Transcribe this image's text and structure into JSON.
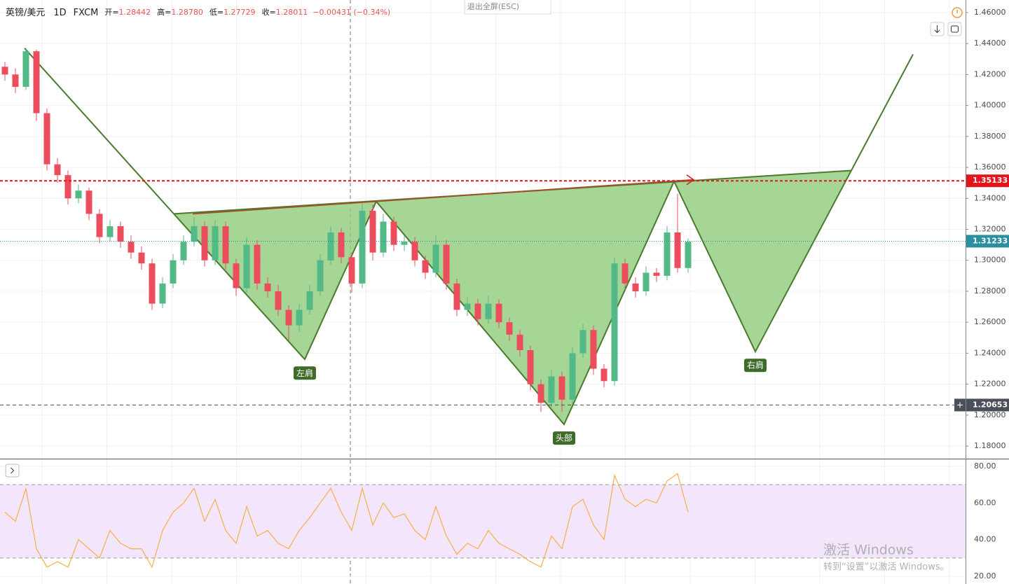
{
  "header": {
    "symbol": "英镑/美元",
    "interval": "1D",
    "source": "FXCM",
    "ohlc": [
      {
        "label": "开=",
        "value": "1.28442"
      },
      {
        "label": "高=",
        "value": "1.28780"
      },
      {
        "label": "低=",
        "value": "1.27729"
      },
      {
        "label": "收=",
        "value": "1.28011"
      }
    ],
    "change": "−0.00431 (−0.34%)"
  },
  "exit_fullscreen": "退出全屏(ESC)",
  "watermark": {
    "title": "激活 Windows",
    "subtitle": "转到“设置”以激活 Windows。"
  },
  "chart_data": [
    {
      "type": "candlestick",
      "up_color": "#53b987",
      "down_color": "#eb4d5c",
      "xlim": [
        -0.467,
        91.4
      ],
      "ylim": [
        1.1719,
        1.4681
      ],
      "yticks": [
        {
          "value": 1.18,
          "label": "1.18000"
        },
        {
          "value": 1.2,
          "label": "1.20000"
        },
        {
          "value": 1.22,
          "label": "1.22000"
        },
        {
          "value": 1.24,
          "label": "1.24000"
        },
        {
          "value": 1.26,
          "label": "1.26000"
        },
        {
          "value": 1.28,
          "label": "1.28000"
        },
        {
          "value": 1.3,
          "label": "1.30000"
        },
        {
          "value": 1.32,
          "label": "1.32000"
        },
        {
          "value": 1.34,
          "label": "1.34000"
        },
        {
          "value": 1.36,
          "label": "1.36000"
        },
        {
          "value": 1.38,
          "label": "1.38000"
        },
        {
          "value": 1.4,
          "label": "1.40000"
        },
        {
          "value": 1.42,
          "label": "1.42000"
        },
        {
          "value": 1.44,
          "label": "1.44000"
        },
        {
          "value": 1.46,
          "label": "1.46000"
        }
      ],
      "grid": true,
      "open": [
        1.425,
        1.42,
        1.412,
        1.435,
        1.395,
        1.362,
        1.355,
        1.34,
        1.345,
        1.33,
        1.315,
        1.322,
        1.312,
        1.305,
        1.298,
        1.272,
        1.285,
        1.3,
        1.312,
        1.322,
        1.3,
        1.322,
        1.298,
        1.282,
        1.31,
        1.285,
        1.28,
        1.268,
        1.258,
        1.268,
        1.28,
        1.3,
        1.318,
        1.302,
        1.285,
        1.332,
        1.305,
        1.325,
        1.31,
        1.312,
        1.3,
        1.292,
        1.31,
        1.285,
        1.268,
        1.272,
        1.262,
        1.272,
        1.26,
        1.252,
        1.242,
        1.22,
        1.208,
        1.225,
        1.21,
        1.24,
        1.255,
        1.23,
        1.222,
        1.298,
        1.285,
        1.28,
        1.292,
        1.29,
        1.318,
        1.295
      ],
      "high": [
        1.428,
        1.424,
        1.437,
        1.436,
        1.398,
        1.366,
        1.358,
        1.349,
        1.347,
        1.333,
        1.326,
        1.325,
        1.316,
        1.309,
        1.301,
        1.289,
        1.304,
        1.316,
        1.328,
        1.325,
        1.326,
        1.325,
        1.301,
        1.315,
        1.313,
        1.289,
        1.284,
        1.271,
        1.272,
        1.284,
        1.304,
        1.322,
        1.321,
        1.305,
        1.338,
        1.336,
        1.33,
        1.328,
        1.316,
        1.315,
        1.303,
        1.316,
        1.313,
        1.288,
        1.276,
        1.275,
        1.277,
        1.275,
        1.263,
        1.255,
        1.245,
        1.223,
        1.229,
        1.228,
        1.244,
        1.259,
        1.258,
        1.233,
        1.302,
        1.301,
        1.289,
        1.296,
        1.295,
        1.322,
        1.343,
        1.314
      ],
      "low": [
        1.416,
        1.408,
        1.41,
        1.39,
        1.358,
        1.35,
        1.336,
        1.337,
        1.326,
        1.311,
        1.312,
        1.308,
        1.301,
        1.294,
        1.268,
        1.269,
        1.282,
        1.297,
        1.309,
        1.296,
        1.297,
        1.294,
        1.277,
        1.279,
        1.281,
        1.276,
        1.264,
        1.248,
        1.254,
        1.265,
        1.277,
        1.297,
        1.298,
        1.279,
        1.282,
        1.3,
        1.302,
        1.306,
        1.306,
        1.296,
        1.288,
        1.289,
        1.281,
        1.264,
        1.264,
        1.258,
        1.259,
        1.256,
        1.248,
        1.238,
        1.216,
        1.202,
        1.205,
        1.202,
        1.207,
        1.237,
        1.226,
        1.218,
        1.219,
        1.281,
        1.276,
        1.277,
        1.286,
        1.287,
        1.292,
        1.292
      ],
      "close": [
        1.42,
        1.412,
        1.435,
        1.395,
        1.362,
        1.355,
        1.34,
        1.345,
        1.33,
        1.315,
        1.322,
        1.312,
        1.305,
        1.298,
        1.272,
        1.285,
        1.3,
        1.312,
        1.322,
        1.3,
        1.322,
        1.298,
        1.282,
        1.31,
        1.285,
        1.28,
        1.268,
        1.258,
        1.268,
        1.28,
        1.3,
        1.318,
        1.302,
        1.285,
        1.332,
        1.305,
        1.325,
        1.31,
        1.312,
        1.3,
        1.292,
        1.31,
        1.285,
        1.268,
        1.272,
        1.262,
        1.272,
        1.26,
        1.252,
        1.242,
        1.22,
        1.208,
        1.225,
        1.21,
        1.24,
        1.255,
        1.23,
        1.222,
        1.298,
        1.285,
        1.28,
        1.292,
        1.29,
        1.318,
        1.295,
        1.312
      ],
      "price_lines": [
        {
          "value": 1.35133,
          "color": "#e3141a",
          "dash": "4 3"
        },
        {
          "value": 1.31233,
          "color": "#2a8fa0",
          "dash": "1 2"
        },
        {
          "value": 1.20653,
          "color": "#4a4f5a",
          "dash": "5 4"
        }
      ],
      "pattern": {
        "color": "#4a7a2e",
        "fill": "#8fcc7a",
        "lead_in": [
          [
            1.87,
            1.437
          ],
          [
            16.07,
            1.33
          ]
        ],
        "points": [
          {
            "x": 16.07,
            "y": 1.33
          },
          {
            "x": 28.53,
            "y": 1.236,
            "label": "左肩"
          },
          {
            "x": 35.33,
            "y": 1.338
          },
          {
            "x": 53.2,
            "y": 1.194,
            "label": "头部"
          },
          {
            "x": 63.67,
            "y": 1.351
          },
          {
            "x": 71.4,
            "y": 1.241,
            "label": "右肩"
          },
          {
            "x": 80.53,
            "y": 1.358
          }
        ],
        "extension": [
          [
            80.53,
            1.358
          ],
          [
            86.4,
            1.433
          ]
        ],
        "neckline": {
          "color": "#a0522d",
          "points": [
            [
              17.87,
              1.33
            ],
            [
              65.53,
              1.352
            ]
          ]
        }
      }
    },
    {
      "type": "line",
      "band": [
        30,
        70
      ],
      "band_color": "#f3e5fb",
      "ylim": [
        15.8,
        83.4
      ],
      "yticks": [
        {
          "value": 20,
          "label": "20.00"
        },
        {
          "value": 40,
          "label": "40.00"
        },
        {
          "value": 60,
          "label": "60.00"
        },
        {
          "value": 80,
          "label": "80.00"
        }
      ],
      "series": [
        {
          "color": "#f5b04a",
          "values": [
            55,
            50,
            68,
            35,
            25,
            28,
            25,
            40,
            35,
            30,
            45,
            38,
            35,
            35,
            25,
            45,
            55,
            60,
            68,
            50,
            62,
            45,
            38,
            58,
            42,
            45,
            38,
            35,
            45,
            52,
            60,
            68,
            55,
            45,
            68,
            48,
            60,
            52,
            54,
            45,
            40,
            58,
            42,
            32,
            38,
            35,
            45,
            38,
            35,
            32,
            28,
            25,
            42,
            35,
            58,
            62,
            48,
            40,
            75,
            62,
            58,
            62,
            60,
            72,
            76,
            55
          ]
        }
      ]
    }
  ]
}
